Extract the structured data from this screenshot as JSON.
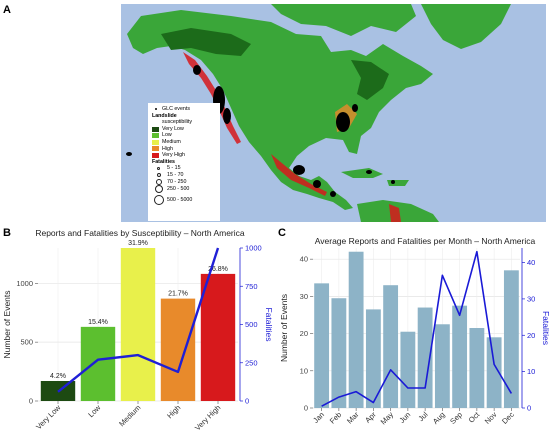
{
  "panels": {
    "a": "A",
    "b": "B",
    "c": "C"
  },
  "map": {
    "legend": {
      "events_label": "GLC events",
      "susceptibility_title": "Landslide",
      "susceptibility_subtitle": "susceptibility",
      "susceptibility_levels": [
        {
          "label": "Very Low",
          "color": "#1d4a12"
        },
        {
          "label": "Low",
          "color": "#5cbf2f"
        },
        {
          "label": "Medium",
          "color": "#e8f04b"
        },
        {
          "label": "High",
          "color": "#e88a2b"
        },
        {
          "label": "Very High",
          "color": "#d7191c"
        }
      ],
      "fatalities_title": "Fatalities",
      "fatalities_ranges": [
        "5 - 15",
        "15 - 70",
        "70 - 250",
        "250 - 500",
        "500 - 5000"
      ]
    },
    "colors": {
      "ocean": "#a9c1e3",
      "land": "#3aa639",
      "land_dark": "#1c6b1a",
      "outside": "#e6e6e6"
    }
  },
  "chart_data": [
    {
      "type": "bar",
      "title": "Reports and Fatalities by Susceptibility – North America",
      "categories": [
        "Very Low",
        "Low",
        "Medium",
        "High",
        "Very High"
      ],
      "series": [
        {
          "values": [
            170,
            630,
            1300,
            870,
            1080
          ],
          "colors": [
            "#1d4a12",
            "#5cbf2f",
            "#e8f04b",
            "#e88a2b",
            "#d7191c"
          ]
        },
        {
          "values": [
            60,
            270,
            300,
            190,
            1000
          ],
          "color": "#1f1fd6",
          "axis": "right"
        }
      ],
      "data_labels": [
        "4.2%",
        "15.4%",
        "31.9%",
        "21.7%",
        "26.8%"
      ],
      "ylabel": "Number of Events",
      "y2label": "Fatalities",
      "ylim": [
        0,
        1300
      ],
      "y2lim": [
        0,
        1000
      ],
      "yticks": [
        "0",
        "500",
        "1000"
      ],
      "y2ticks": [
        "0",
        "250",
        "500",
        "750",
        "1000"
      ],
      "grid": true
    },
    {
      "type": "bar",
      "title": "Average Reports and Fatalities per Month – North America",
      "categories": [
        "Jan",
        "Feb",
        "Mar",
        "Apr",
        "May",
        "Jun",
        "Jul",
        "Aug",
        "Sep",
        "Oct",
        "Nov",
        "Dec"
      ],
      "series": [
        {
          "values": [
            33.5,
            29.5,
            42,
            26.5,
            33,
            20.5,
            27,
            22.5,
            27.5,
            21.5,
            19,
            37
          ],
          "color": "#8db3c7"
        },
        {
          "values": [
            0.5,
            3,
            4.5,
            1.5,
            10.5,
            5.5,
            5.5,
            36.5,
            25.5,
            43,
            12,
            4
          ],
          "color": "#1a1ad6",
          "axis": "right"
        }
      ],
      "ylabel": "Number of Events",
      "y2label": "Fatalities",
      "ylim": [
        0,
        43
      ],
      "y2lim": [
        0,
        44
      ],
      "yticks": [
        "0",
        "10",
        "20",
        "30",
        "40"
      ],
      "y2ticks": [
        "0",
        "10",
        "20",
        "30",
        "40"
      ],
      "grid": true
    }
  ]
}
